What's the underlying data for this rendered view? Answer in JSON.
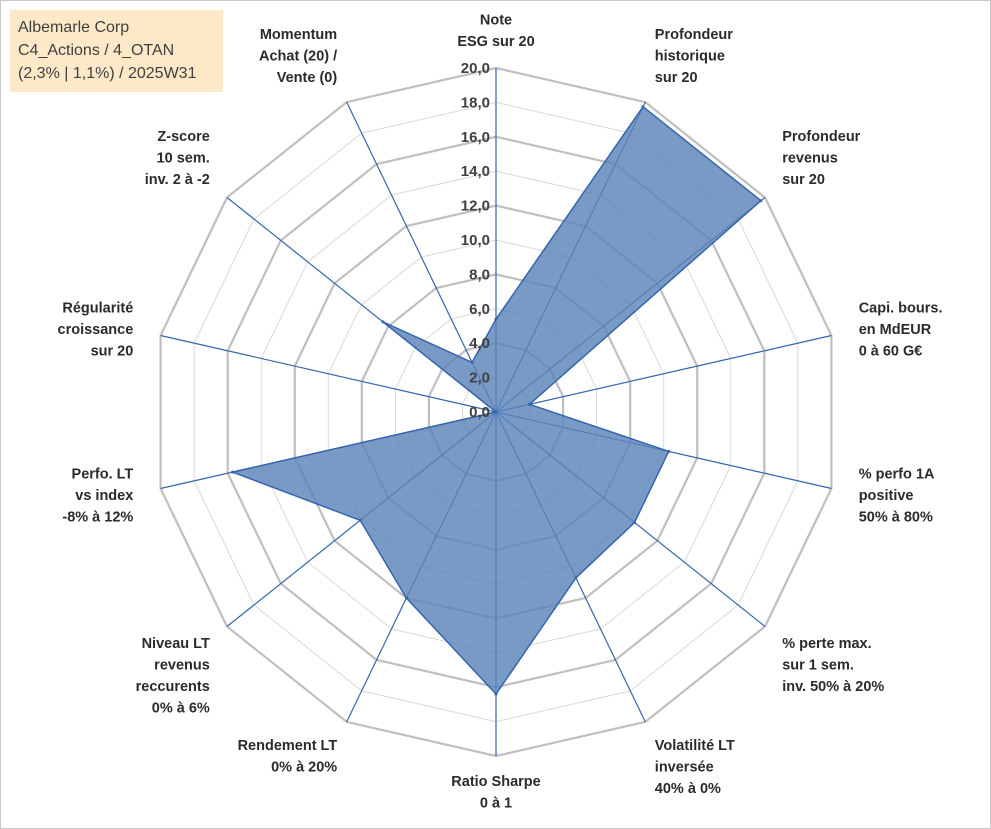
{
  "title_box": {
    "line1": "Albemarle Corp",
    "line2": "C4_Actions / 4_OTAN",
    "line3": "(2,3% | 1,1%) / 2025W31"
  },
  "colors": {
    "fill": "#5b84b8",
    "line": "#3565ad",
    "grid": "#bfbfbf",
    "title_bg": "#fde9c8"
  },
  "chart_data": {
    "type": "radar",
    "range": [
      0,
      20
    ],
    "tick_step": 2,
    "tick_labels": [
      "0,0",
      "2,0",
      "4,0",
      "6,0",
      "8,0",
      "10,0",
      "12,0",
      "14,0",
      "16,0",
      "18,0",
      "20,0"
    ],
    "axes": [
      {
        "label": [
          "Note",
          "ESG sur 20"
        ],
        "value": 5.4
      },
      {
        "label": [
          "Profondeur",
          "historique",
          "sur 20"
        ],
        "value": 19.7
      },
      {
        "label": [
          "Profondeur",
          "revenus",
          "sur 20"
        ],
        "value": 19.7
      },
      {
        "label": [
          "Capi. bours.",
          "en MdEUR",
          "0 à 60 G€"
        ],
        "value": 2.0
      },
      {
        "label": [
          "% perfo 1A",
          "positive",
          "50% à 80%"
        ],
        "value": 10.3
      },
      {
        "label": [
          "% perte max.",
          "sur 1 sem.",
          "inv. 50% à 20%"
        ],
        "value": 10.3
      },
      {
        "label": [
          "Volatilité LT",
          "inversée",
          "40% à 0%"
        ],
        "value": 10.7
      },
      {
        "label": [
          "Ratio Sharpe",
          "0 à 1"
        ],
        "value": 16.4
      },
      {
        "label": [
          "Rendement LT",
          "0% à 20%"
        ],
        "value": 12.0
      },
      {
        "label": [
          "Niveau LT",
          "revenus",
          "reccurents",
          "0% à 6%"
        ],
        "value": 10.1
      },
      {
        "label": [
          "Perfo. LT",
          "vs index",
          "-8% à 12%"
        ],
        "value": 15.7
      },
      {
        "label": [
          "Régularité",
          "croissance",
          "sur 20"
        ],
        "value": 0.0
      },
      {
        "label": [
          "Z-score",
          "10 sem.",
          "inv. 2 à -2"
        ],
        "value": 8.4
      },
      {
        "label": [
          "Momentum",
          "Achat (20) /",
          "Vente (0)"
        ],
        "value": 3.2
      }
    ]
  }
}
